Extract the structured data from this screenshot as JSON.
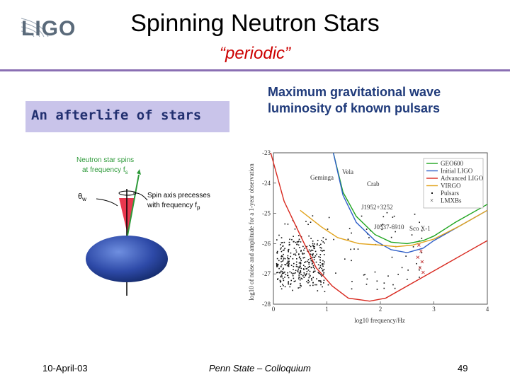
{
  "logo": {
    "text": "LIGO"
  },
  "slide": {
    "title": "Spinning Neutron Stars",
    "subtitle": "“periodic”",
    "afterlife_box": "An afterlife of stars",
    "luminosity_caption": "Maximum gravitational wave luminosity of known pulsars"
  },
  "illustration": {
    "spin_line1": "Neutron star spins",
    "spin_line2": "at frequency f",
    "spin_sub": "s",
    "theta_label": "θ",
    "theta_sub": "w",
    "precess_line1": "Spin axis precesses",
    "precess_line2": "with frequency f",
    "precess_sub": "p"
  },
  "colors": {
    "accent_rule": "#8a6fb3",
    "afterlife_bg": "#c9c4ea",
    "title_red": "#cc0000",
    "caption_blue": "#1f3a7a"
  },
  "chart_data": {
    "type": "line",
    "xlabel": "log10 frequency/Hz",
    "ylabel": "log10 of noise and amplitude for a 1-year observation",
    "xlim": [
      0,
      4
    ],
    "ylim": [
      -28,
      -23
    ],
    "x_ticks": [
      "0",
      "1",
      "2",
      "3",
      "4"
    ],
    "y_ticks": [
      "-23",
      "-24",
      "-25",
      "-26",
      "-27",
      "-28"
    ],
    "legend": [
      "GEO600",
      "Initial LIGO",
      "Advanced LIGO",
      "VIRGO",
      "Pulsars",
      "LMXBs"
    ],
    "legend_position": "top-right",
    "series": [
      {
        "name": "GEO600",
        "color": "#1fa51f",
        "x": [
          1.12,
          1.3,
          1.55,
          1.9,
          2.2,
          2.5,
          2.8,
          3.0,
          3.4,
          4.0
        ],
        "y": [
          -23,
          -24.3,
          -25.1,
          -25.7,
          -25.95,
          -26.0,
          -25.9,
          -25.75,
          -25.3,
          -24.7
        ]
      },
      {
        "name": "Initial LIGO",
        "color": "#2e5ec8",
        "x": [
          1.12,
          1.3,
          1.55,
          1.9,
          2.2,
          2.5,
          2.8,
          3.0,
          3.4,
          4.0
        ],
        "y": [
          -23,
          -24.4,
          -25.3,
          -25.9,
          -26.2,
          -26.3,
          -26.15,
          -25.9,
          -25.5,
          -24.9
        ]
      },
      {
        "name": "Advanced LIGO",
        "color": "#d8281e",
        "x": [
          -0.05,
          0.2,
          0.55,
          0.8,
          1.1,
          1.4,
          1.8,
          2.1,
          2.4,
          2.8,
          3.2,
          3.6,
          4.0
        ],
        "y": [
          -23,
          -24.6,
          -25.9,
          -26.8,
          -27.4,
          -27.8,
          -27.9,
          -27.8,
          -27.5,
          -27.1,
          -26.7,
          -26.3,
          -25.9
        ]
      },
      {
        "name": "VIRGO",
        "color": "#e2a41e",
        "x": [
          0.5,
          0.9,
          1.2,
          1.6,
          2.0,
          2.3,
          2.6,
          3.0,
          3.5,
          4.0
        ],
        "y": [
          -24.9,
          -25.45,
          -25.8,
          -26.0,
          -26.05,
          -26.1,
          -26.05,
          -25.85,
          -25.4,
          -24.9
        ]
      }
    ],
    "annotations": [
      "Geminga",
      "Vela",
      "Crab",
      "J1952+3252",
      "J0537-6910",
      "Sco X-1"
    ]
  },
  "footer": {
    "date": "10-April-03",
    "venue": "Penn State – Colloquium",
    "page": "49"
  }
}
